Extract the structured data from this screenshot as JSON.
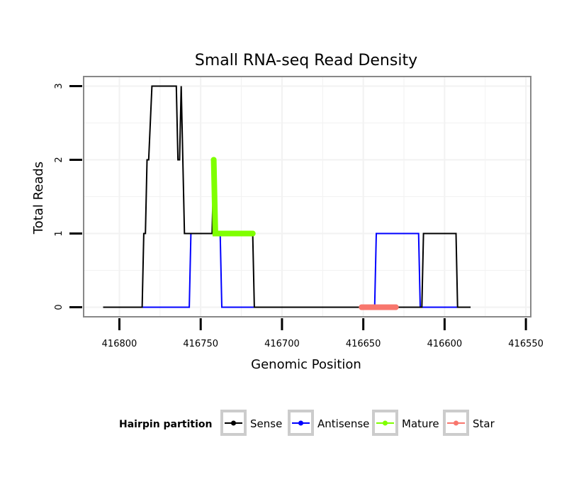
{
  "chart_data": {
    "type": "line",
    "title": "Small RNA-seq Read Density",
    "xlabel": "Genomic Position",
    "ylabel": "Total Reads",
    "xlim": [
      416822,
      416547
    ],
    "x_reversed": true,
    "ylim": [
      -0.13,
      3.13
    ],
    "xticks": [
      416800,
      416750,
      416700,
      416650,
      416600,
      416550
    ],
    "yticks": [
      0,
      1,
      2,
      3
    ],
    "grid": true,
    "legend": {
      "title": "Hairpin partition",
      "position": "bottom",
      "entries": [
        "Sense",
        "Antisense",
        "Mature",
        "Star"
      ]
    },
    "series": [
      {
        "name": "Sense",
        "color": "#000000",
        "x": [
          416810,
          416786,
          416785,
          416784,
          416783,
          416782,
          416780,
          416765,
          416764,
          416763,
          416762,
          416761,
          416760,
          416755,
          416743,
          416742,
          416741,
          416740,
          416739,
          416735,
          416718,
          416717,
          416716,
          416614,
          416613,
          416612,
          416593,
          416592,
          416591,
          416584
        ],
        "y": [
          0,
          0,
          1,
          1,
          2,
          2,
          3,
          3,
          2,
          2,
          3,
          2,
          1,
          1,
          1,
          2,
          1,
          1,
          1,
          1,
          1,
          0,
          0,
          0,
          1,
          1,
          1,
          0,
          0,
          0
        ]
      },
      {
        "name": "Antisense",
        "color": "#0000ff",
        "x": [
          416786,
          416757,
          416756,
          416738,
          416737,
          416643,
          416642,
          416616,
          416615,
          416592
        ],
        "y": [
          0,
          0,
          1,
          1,
          0,
          0,
          1,
          1,
          0,
          0
        ]
      },
      {
        "name": "Mature",
        "color": "#7fff00",
        "x": [
          416742,
          416741,
          416740,
          416739,
          416718
        ],
        "y": [
          2,
          1,
          1,
          1,
          1
        ]
      },
      {
        "name": "Star",
        "color": "#f8766d",
        "x": [
          416651,
          416630
        ],
        "y": [
          0,
          0
        ]
      }
    ]
  }
}
